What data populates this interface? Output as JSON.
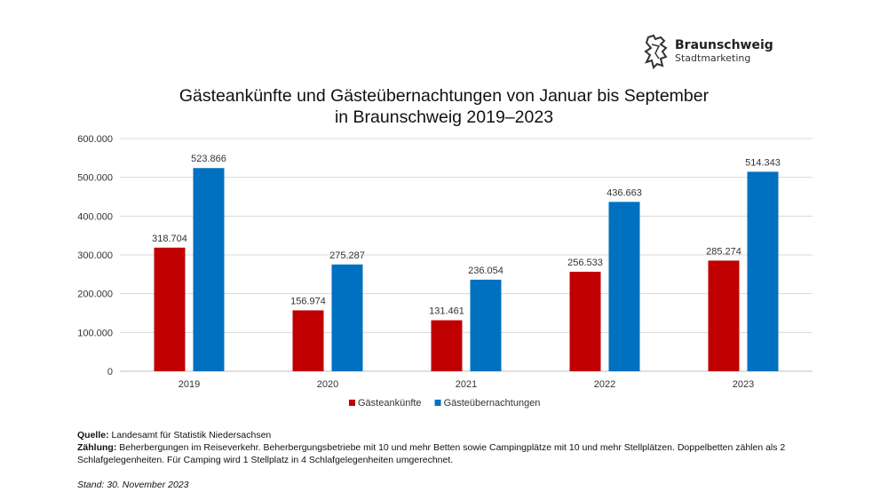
{
  "logo": {
    "name": "Braunschweig",
    "subtitle": "Stadtmarketing",
    "icon": "lion-icon"
  },
  "chart_data": {
    "type": "bar",
    "title": "Gästeankünfte und Gästeübernachtungen von Januar bis September in Braunschweig 2019–2023",
    "title_lines": [
      "Gästeankünfte und Gästeübernachtungen von Januar bis September",
      "in Braunschweig 2019–2023"
    ],
    "categories": [
      "2019",
      "2020",
      "2021",
      "2022",
      "2023"
    ],
    "series": [
      {
        "name": "Gästeankünfte",
        "color": "#C00000",
        "values": [
          318704,
          156974,
          131461,
          256533,
          285274
        ],
        "labels": [
          "318.704",
          "156.974",
          "131.461",
          "256.533",
          "285.274"
        ]
      },
      {
        "name": "Gästeübernachtungen",
        "color": "#0070C0",
        "values": [
          523866,
          275287,
          236054,
          436663,
          514343
        ],
        "labels": [
          "523.866",
          "275.287",
          "236.054",
          "436.663",
          "514.343"
        ]
      }
    ],
    "ylim": [
      0,
      600000
    ],
    "yticks": [
      0,
      100000,
      200000,
      300000,
      400000,
      500000,
      600000
    ],
    "ytick_labels": [
      "0",
      "100.000",
      "200.000",
      "300.000",
      "400.000",
      "500.000",
      "600.000"
    ],
    "grid": true,
    "legend": "bottom"
  },
  "notes": {
    "source_label": "Quelle:",
    "source_text": " Landesamt für Statistik Niedersachsen",
    "count_label": "Zählung:",
    "count_text": " Beherbergungen im Reiseverkehr. Beherbergungsbetriebe mit 10 und mehr Betten sowie Campingplätze mit 10 und mehr Stellplätzen. Doppelbetten zählen als 2 Schlafgelegenheiten. Für Camping wird 1 Stellplatz in 4 Schlafgelegenheiten umgerechnet.",
    "stand": "Stand: 30. November 2023"
  }
}
